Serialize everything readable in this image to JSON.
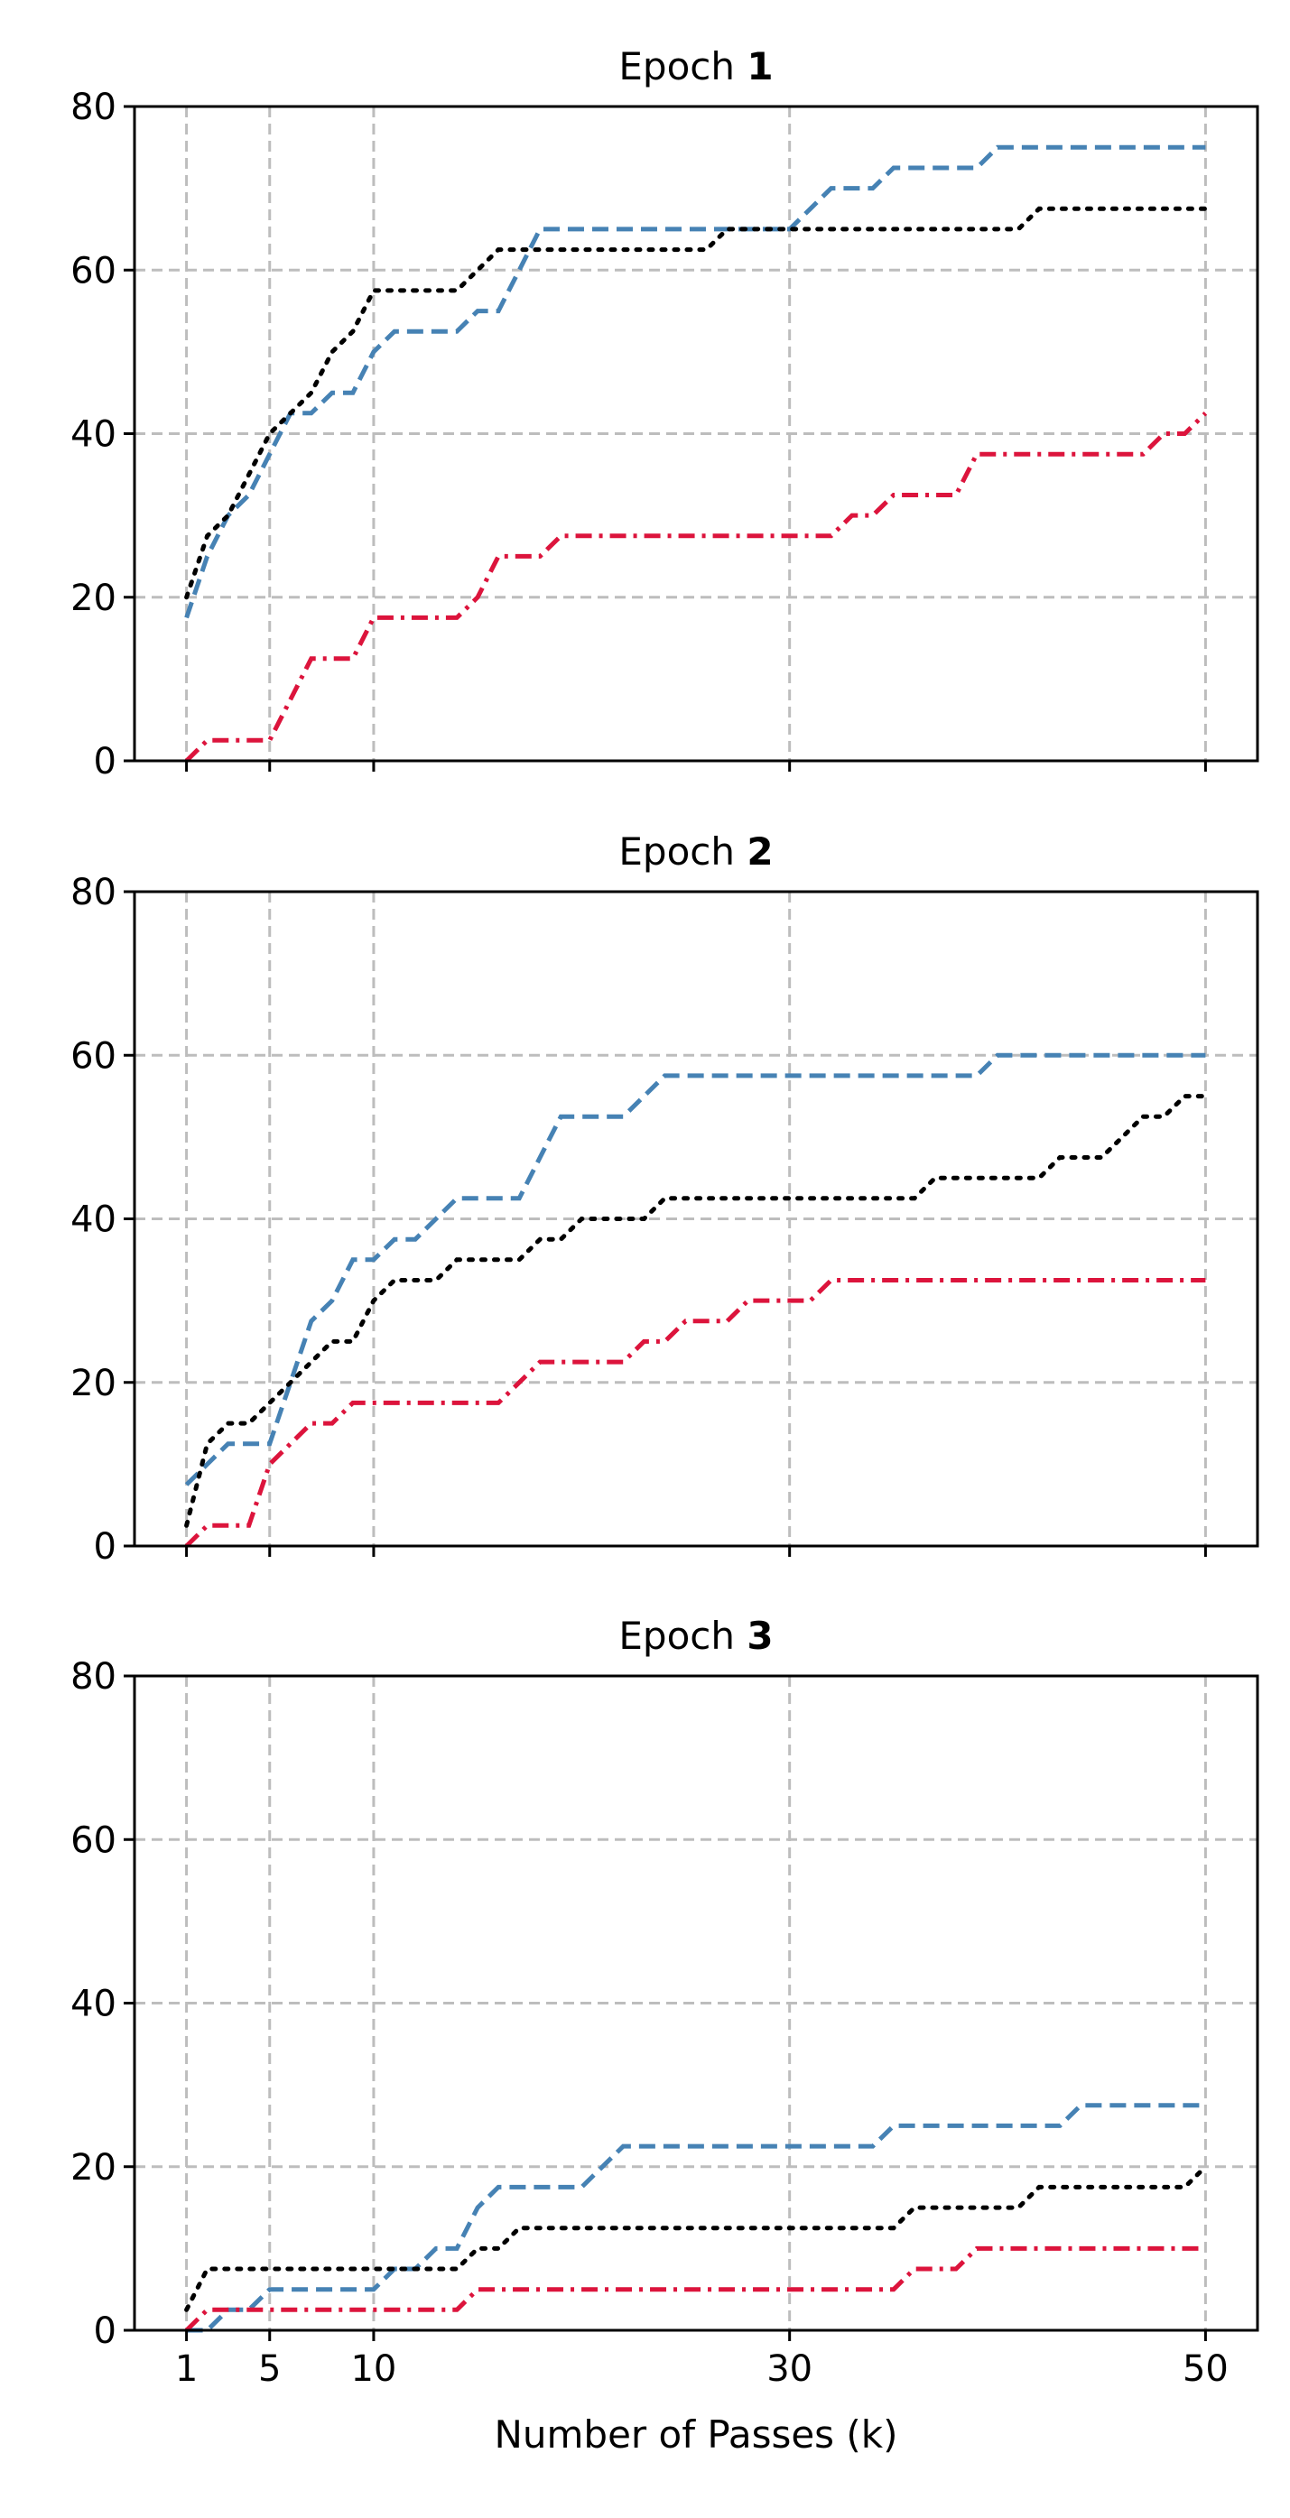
{
  "chart_data": [
    {
      "type": "line",
      "title_prefix": "Epoch ",
      "title_number": "1",
      "xlabel": "",
      "ylabel": "",
      "xlim": [
        -1.5,
        52.5
      ],
      "ylim": [
        0,
        80
      ],
      "xticks": [
        1,
        5,
        10,
        30,
        50
      ],
      "xtick_labels_shown": false,
      "yticks": [
        0,
        20,
        40,
        60,
        80
      ],
      "grid": true,
      "series": [
        {
          "color": "#4682b4",
          "style": "dashed",
          "x": [
            1,
            2,
            3,
            4,
            5,
            6,
            7,
            8,
            9,
            10,
            11,
            12,
            13,
            14,
            15,
            16,
            17,
            18,
            19,
            20,
            21,
            22,
            23,
            24,
            25,
            26,
            27,
            28,
            29,
            30,
            31,
            32,
            33,
            34,
            35,
            36,
            37,
            38,
            39,
            40,
            41,
            42,
            43,
            44,
            45,
            46,
            47,
            48,
            49,
            50
          ],
          "values": [
            17.5,
            25,
            30,
            32.5,
            37.5,
            42.5,
            42.5,
            45,
            45,
            50,
            52.5,
            52.5,
            52.5,
            52.5,
            55,
            55,
            60,
            65,
            65,
            65,
            65,
            65,
            65,
            65,
            65,
            65,
            65,
            65,
            65,
            65,
            67.5,
            70,
            70,
            70,
            72.5,
            72.5,
            72.5,
            72.5,
            72.5,
            75,
            75,
            75,
            75,
            75,
            75,
            75,
            75,
            75,
            75,
            75
          ]
        },
        {
          "color": "#000000",
          "style": "dotted",
          "x": [
            1,
            2,
            3,
            4,
            5,
            6,
            7,
            8,
            9,
            10,
            11,
            12,
            13,
            14,
            15,
            16,
            17,
            18,
            19,
            20,
            21,
            22,
            23,
            24,
            25,
            26,
            27,
            28,
            29,
            30,
            31,
            32,
            33,
            34,
            35,
            36,
            37,
            38,
            39,
            40,
            41,
            42,
            43,
            44,
            45,
            46,
            47,
            48,
            49,
            50
          ],
          "values": [
            20,
            27.5,
            30,
            35,
            40,
            42.5,
            45,
            50,
            52.5,
            57.5,
            57.5,
            57.5,
            57.5,
            57.5,
            60,
            62.5,
            62.5,
            62.5,
            62.5,
            62.5,
            62.5,
            62.5,
            62.5,
            62.5,
            62.5,
            62.5,
            65,
            65,
            65,
            65,
            65,
            65,
            65,
            65,
            65,
            65,
            65,
            65,
            65,
            65,
            65,
            67.5,
            67.5,
            67.5,
            67.5,
            67.5,
            67.5,
            67.5,
            67.5,
            67.5
          ]
        },
        {
          "color": "#dc143c",
          "style": "dashdot",
          "x": [
            1,
            2,
            3,
            4,
            5,
            6,
            7,
            8,
            9,
            10,
            11,
            12,
            13,
            14,
            15,
            16,
            17,
            18,
            19,
            20,
            21,
            22,
            23,
            24,
            25,
            26,
            27,
            28,
            29,
            30,
            31,
            32,
            33,
            34,
            35,
            36,
            37,
            38,
            39,
            40,
            41,
            42,
            43,
            44,
            45,
            46,
            47,
            48,
            49,
            50
          ],
          "values": [
            0,
            2.5,
            2.5,
            2.5,
            2.5,
            7.5,
            12.5,
            12.5,
            12.5,
            17.5,
            17.5,
            17.5,
            17.5,
            17.5,
            20,
            25,
            25,
            25,
            27.5,
            27.5,
            27.5,
            27.5,
            27.5,
            27.5,
            27.5,
            27.5,
            27.5,
            27.5,
            27.5,
            27.5,
            27.5,
            27.5,
            30,
            30,
            32.5,
            32.5,
            32.5,
            32.5,
            37.5,
            37.5,
            37.5,
            37.5,
            37.5,
            37.5,
            37.5,
            37.5,
            37.5,
            40,
            40,
            42.5
          ]
        }
      ]
    },
    {
      "type": "line",
      "title_prefix": "Epoch ",
      "title_number": "2",
      "xlabel": "",
      "ylabel": "",
      "xlim": [
        -1.5,
        52.5
      ],
      "ylim": [
        0,
        80
      ],
      "xticks": [
        1,
        5,
        10,
        30,
        50
      ],
      "xtick_labels_shown": false,
      "yticks": [
        0,
        20,
        40,
        60,
        80
      ],
      "grid": true,
      "series": [
        {
          "color": "#4682b4",
          "style": "dashed",
          "x": [
            1,
            2,
            3,
            4,
            5,
            6,
            7,
            8,
            9,
            10,
            11,
            12,
            13,
            14,
            15,
            16,
            17,
            18,
            19,
            20,
            21,
            22,
            23,
            24,
            25,
            26,
            27,
            28,
            29,
            30,
            31,
            32,
            33,
            34,
            35,
            36,
            37,
            38,
            39,
            40,
            41,
            42,
            43,
            44,
            45,
            46,
            47,
            48,
            49,
            50
          ],
          "values": [
            7.5,
            10,
            12.5,
            12.5,
            12.5,
            20,
            27.5,
            30,
            35,
            35,
            37.5,
            37.5,
            40,
            42.5,
            42.5,
            42.5,
            42.5,
            47.5,
            52.5,
            52.5,
            52.5,
            52.5,
            55,
            57.5,
            57.5,
            57.5,
            57.5,
            57.5,
            57.5,
            57.5,
            57.5,
            57.5,
            57.5,
            57.5,
            57.5,
            57.5,
            57.5,
            57.5,
            57.5,
            60,
            60,
            60,
            60,
            60,
            60,
            60,
            60,
            60,
            60,
            60
          ]
        },
        {
          "color": "#000000",
          "style": "dotted",
          "x": [
            1,
            2,
            3,
            4,
            5,
            6,
            7,
            8,
            9,
            10,
            11,
            12,
            13,
            14,
            15,
            16,
            17,
            18,
            19,
            20,
            21,
            22,
            23,
            24,
            25,
            26,
            27,
            28,
            29,
            30,
            31,
            32,
            33,
            34,
            35,
            36,
            37,
            38,
            39,
            40,
            41,
            42,
            43,
            44,
            45,
            46,
            47,
            48,
            49,
            50
          ],
          "values": [
            2.5,
            12.5,
            15,
            15,
            17.5,
            20,
            22.5,
            25,
            25,
            30,
            32.5,
            32.5,
            32.5,
            35,
            35,
            35,
            35,
            37.5,
            37.5,
            40,
            40,
            40,
            40,
            42.5,
            42.5,
            42.5,
            42.5,
            42.5,
            42.5,
            42.5,
            42.5,
            42.5,
            42.5,
            42.5,
            42.5,
            42.5,
            45,
            45,
            45,
            45,
            45,
            45,
            47.5,
            47.5,
            47.5,
            50,
            52.5,
            52.5,
            55,
            55
          ]
        },
        {
          "color": "#dc143c",
          "style": "dashdot",
          "x": [
            1,
            2,
            3,
            4,
            5,
            6,
            7,
            8,
            9,
            10,
            11,
            12,
            13,
            14,
            15,
            16,
            17,
            18,
            19,
            20,
            21,
            22,
            23,
            24,
            25,
            26,
            27,
            28,
            29,
            30,
            31,
            32,
            33,
            34,
            35,
            36,
            37,
            38,
            39,
            40,
            41,
            42,
            43,
            44,
            45,
            46,
            47,
            48,
            49,
            50
          ],
          "values": [
            0,
            2.5,
            2.5,
            2.5,
            10,
            12.5,
            15,
            15,
            17.5,
            17.5,
            17.5,
            17.5,
            17.5,
            17.5,
            17.5,
            17.5,
            20,
            22.5,
            22.5,
            22.5,
            22.5,
            22.5,
            25,
            25,
            27.5,
            27.5,
            27.5,
            30,
            30,
            30,
            30,
            32.5,
            32.5,
            32.5,
            32.5,
            32.5,
            32.5,
            32.5,
            32.5,
            32.5,
            32.5,
            32.5,
            32.5,
            32.5,
            32.5,
            32.5,
            32.5,
            32.5,
            32.5,
            32.5
          ]
        }
      ]
    },
    {
      "type": "line",
      "title_prefix": "Epoch ",
      "title_number": "3",
      "xlabel": "Number of Passes (k)",
      "ylabel": "",
      "xlim": [
        -1.5,
        52.5
      ],
      "ylim": [
        0,
        80
      ],
      "xticks": [
        1,
        5,
        10,
        30,
        50
      ],
      "xtick_labels_shown": true,
      "yticks": [
        0,
        20,
        40,
        60,
        80
      ],
      "grid": true,
      "series": [
        {
          "color": "#4682b4",
          "style": "dashed",
          "x": [
            1,
            2,
            3,
            4,
            5,
            6,
            7,
            8,
            9,
            10,
            11,
            12,
            13,
            14,
            15,
            16,
            17,
            18,
            19,
            20,
            21,
            22,
            23,
            24,
            25,
            26,
            27,
            28,
            29,
            30,
            31,
            32,
            33,
            34,
            35,
            36,
            37,
            38,
            39,
            40,
            41,
            42,
            43,
            44,
            45,
            46,
            47,
            48,
            49,
            50
          ],
          "values": [
            0,
            0,
            2.5,
            2.5,
            5,
            5,
            5,
            5,
            5,
            5,
            7.5,
            7.5,
            10,
            10,
            15,
            17.5,
            17.5,
            17.5,
            17.5,
            17.5,
            20,
            22.5,
            22.5,
            22.5,
            22.5,
            22.5,
            22.5,
            22.5,
            22.5,
            22.5,
            22.5,
            22.5,
            22.5,
            22.5,
            25,
            25,
            25,
            25,
            25,
            25,
            25,
            25,
            25,
            27.5,
            27.5,
            27.5,
            27.5,
            27.5,
            27.5,
            27.5
          ]
        },
        {
          "color": "#000000",
          "style": "dotted",
          "x": [
            1,
            2,
            3,
            4,
            5,
            6,
            7,
            8,
            9,
            10,
            11,
            12,
            13,
            14,
            15,
            16,
            17,
            18,
            19,
            20,
            21,
            22,
            23,
            24,
            25,
            26,
            27,
            28,
            29,
            30,
            31,
            32,
            33,
            34,
            35,
            36,
            37,
            38,
            39,
            40,
            41,
            42,
            43,
            44,
            45,
            46,
            47,
            48,
            49,
            50
          ],
          "values": [
            2.5,
            7.5,
            7.5,
            7.5,
            7.5,
            7.5,
            7.5,
            7.5,
            7.5,
            7.5,
            7.5,
            7.5,
            7.5,
            7.5,
            10,
            10,
            12.5,
            12.5,
            12.5,
            12.5,
            12.5,
            12.5,
            12.5,
            12.5,
            12.5,
            12.5,
            12.5,
            12.5,
            12.5,
            12.5,
            12.5,
            12.5,
            12.5,
            12.5,
            12.5,
            15,
            15,
            15,
            15,
            15,
            15,
            17.5,
            17.5,
            17.5,
            17.5,
            17.5,
            17.5,
            17.5,
            17.5,
            20
          ]
        },
        {
          "color": "#dc143c",
          "style": "dashdot",
          "x": [
            1,
            2,
            3,
            4,
            5,
            6,
            7,
            8,
            9,
            10,
            11,
            12,
            13,
            14,
            15,
            16,
            17,
            18,
            19,
            20,
            21,
            22,
            23,
            24,
            25,
            26,
            27,
            28,
            29,
            30,
            31,
            32,
            33,
            34,
            35,
            36,
            37,
            38,
            39,
            40,
            41,
            42,
            43,
            44,
            45,
            46,
            47,
            48,
            49,
            50
          ],
          "values": [
            0,
            2.5,
            2.5,
            2.5,
            2.5,
            2.5,
            2.5,
            2.5,
            2.5,
            2.5,
            2.5,
            2.5,
            2.5,
            2.5,
            5,
            5,
            5,
            5,
            5,
            5,
            5,
            5,
            5,
            5,
            5,
            5,
            5,
            5,
            5,
            5,
            5,
            5,
            5,
            5,
            5,
            7.5,
            7.5,
            7.5,
            10,
            10,
            10,
            10,
            10,
            10,
            10,
            10,
            10,
            10,
            10,
            10
          ]
        }
      ]
    }
  ]
}
